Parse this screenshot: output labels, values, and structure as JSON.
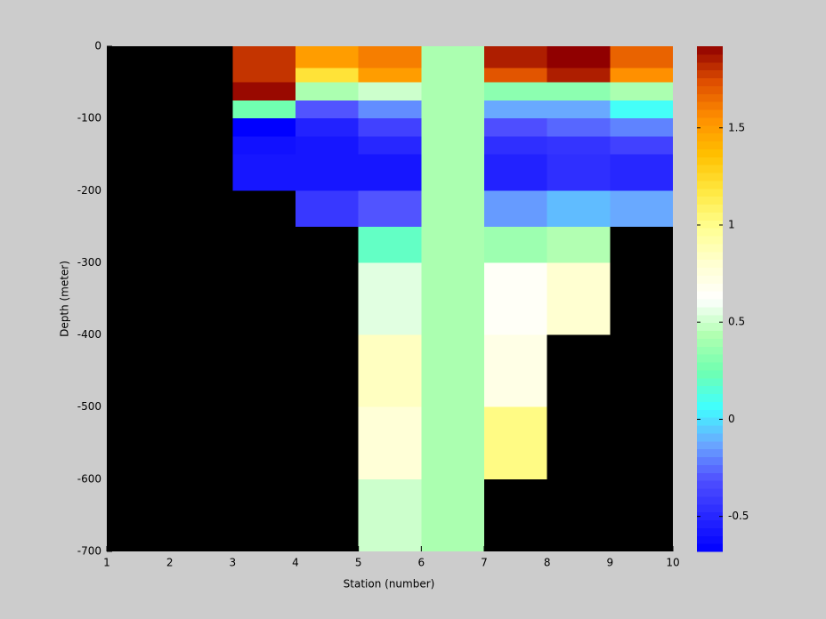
{
  "chart_data": {
    "type": "heatmap",
    "xlabel": "Station (number)",
    "ylabel": "Depth (meter)",
    "x": [
      1,
      2,
      3,
      4,
      5,
      6,
      7,
      8,
      9,
      10
    ],
    "y": [
      0,
      -30,
      -50,
      -75,
      -100,
      -125,
      -150,
      -200,
      -250,
      -300,
      -400,
      -500,
      -600,
      -700
    ],
    "values": [
      [
        null,
        null,
        1.8,
        1.5,
        1.6,
        0.42,
        1.85,
        1.92,
        1.68
      ],
      [
        null,
        null,
        1.8,
        1.2,
        1.5,
        0.42,
        1.72,
        1.85,
        1.55
      ],
      [
        null,
        null,
        1.9,
        0.42,
        0.5,
        0.42,
        0.33,
        0.33,
        0.42
      ],
      [
        null,
        null,
        0.25,
        -0.3,
        -0.18,
        0.42,
        -0.12,
        -0.12,
        0.08
      ],
      [
        null,
        null,
        -0.68,
        -0.52,
        -0.38,
        0.42,
        -0.32,
        -0.26,
        -0.2
      ],
      [
        null,
        null,
        -0.6,
        -0.58,
        -0.5,
        0.42,
        -0.46,
        -0.44,
        -0.38
      ],
      [
        null,
        null,
        -0.58,
        -0.58,
        -0.58,
        0.42,
        -0.52,
        -0.46,
        -0.5
      ],
      [
        null,
        null,
        null,
        -0.42,
        -0.3,
        0.42,
        -0.15,
        -0.08,
        -0.12
      ],
      [
        null,
        null,
        null,
        null,
        0.2,
        0.42,
        0.38,
        0.44,
        null
      ],
      [
        null,
        null,
        null,
        null,
        0.55,
        0.42,
        0.65,
        0.8,
        null
      ],
      [
        null,
        null,
        null,
        null,
        0.85,
        0.42,
        0.72,
        null,
        null
      ],
      [
        null,
        null,
        null,
        null,
        0.78,
        0.42,
        1.02,
        null,
        null
      ],
      [
        null,
        null,
        null,
        null,
        0.5,
        0.42,
        null,
        null,
        null
      ]
    ],
    "xlim": [
      1,
      10
    ],
    "xticks": [
      1,
      2,
      3,
      4,
      5,
      6,
      7,
      8,
      9,
      10
    ],
    "ylim": [
      -700,
      0
    ],
    "yticks": [
      0,
      -100,
      -200,
      -300,
      -400,
      -500,
      -600,
      -700
    ],
    "clim": [
      -0.68,
      1.92
    ],
    "cticks": [
      1.5,
      1,
      0.5,
      0,
      -0.5
    ],
    "colormap": [
      "#0000ff",
      "#2828ff",
      "#5050ff",
      "#6aa8ff",
      "#40ffff",
      "#70ffb0",
      "#b0ffb0",
      "#ffffff",
      "#ffffd0",
      "#ffff90",
      "#ffe840",
      "#ffc000",
      "#ff9000",
      "#e05000",
      "#900000"
    ],
    "background": "#000000"
  }
}
